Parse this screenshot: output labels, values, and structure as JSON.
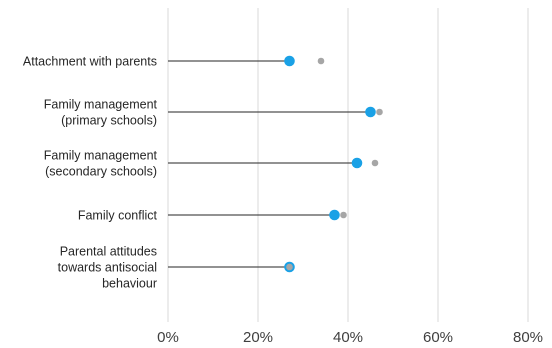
{
  "chart_data": {
    "type": "dot-plot",
    "orientation": "horizontal",
    "title": "",
    "xlabel": "",
    "ylabel": "",
    "xlim": [
      0,
      80
    ],
    "x_ticks": [
      0,
      20,
      40,
      60,
      80
    ],
    "x_tick_labels": [
      "0%",
      "20%",
      "40%",
      "60%",
      "80%"
    ],
    "grid": "vertical",
    "categories": [
      [
        "Attachment with parents"
      ],
      [
        "Family management",
        "(primary schools)"
      ],
      [
        "Family management",
        "(secondary schools)"
      ],
      [
        "Family conflict"
      ],
      [
        "Parental attitudes",
        "towards antisocial",
        "behaviour"
      ]
    ],
    "series": [
      {
        "values": [
          27,
          45,
          42,
          37,
          27
        ],
        "color": "#1aa1e6",
        "marker": "large-dot-with-stem"
      },
      {
        "values": [
          34,
          47,
          46,
          39,
          27
        ],
        "color": "#a6a6a6",
        "marker": "small-dot"
      }
    ],
    "colors": {
      "stem": "#262626",
      "grid": "#d9d9d9",
      "primary": "#1aa1e6",
      "secondary": "#a6a6a6"
    }
  }
}
